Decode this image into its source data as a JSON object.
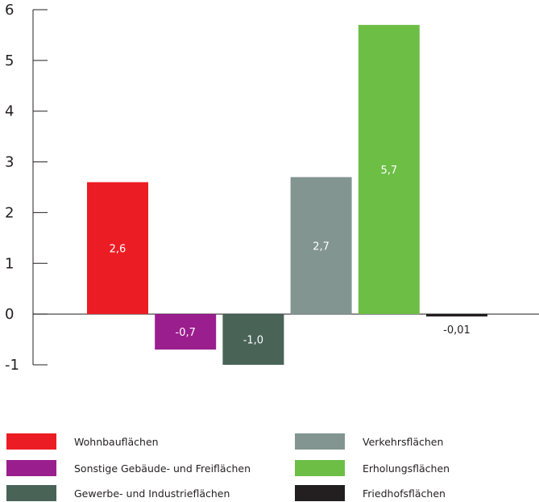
{
  "chart_data": {
    "type": "bar",
    "title": "",
    "xlabel": "",
    "ylabel": "",
    "ylim": [
      -1,
      6
    ],
    "yticks": [
      6,
      5,
      4,
      3,
      2,
      1,
      0,
      -1
    ],
    "grid": false,
    "legend_position": "bottom",
    "categories": [
      "Wohnbauflächen",
      "Sonstige Gebäude- und Freiflächen",
      "Gewerbe- und Industrieflächen",
      "Verkehrsflächen",
      "Erholungsflächen",
      "Friedhofsflächen"
    ],
    "values": [
      2.6,
      -0.7,
      -1.0,
      2.7,
      5.7,
      -0.01
    ],
    "data_labels": [
      "2,6",
      "-0,7",
      "-1,0",
      "2,7",
      "5,7",
      "-0,01"
    ],
    "colors": [
      "#ec1c24",
      "#9a1e8e",
      "#4a6357",
      "#829590",
      "#6dbe45",
      "#231f20"
    ]
  },
  "legend": {
    "items": [
      {
        "label": "Wohnbauflächen",
        "color": "#ec1c24"
      },
      {
        "label": "Sonstige Gebäude- und Freiflächen",
        "color": "#9a1e8e"
      },
      {
        "label": "Gewerbe- und Industrieflächen",
        "color": "#4a6357"
      },
      {
        "label": "Verkehrsflächen",
        "color": "#829590"
      },
      {
        "label": "Erholungsflächen",
        "color": "#6dbe45"
      },
      {
        "label": "Friedhofsflächen",
        "color": "#231f20"
      }
    ]
  }
}
